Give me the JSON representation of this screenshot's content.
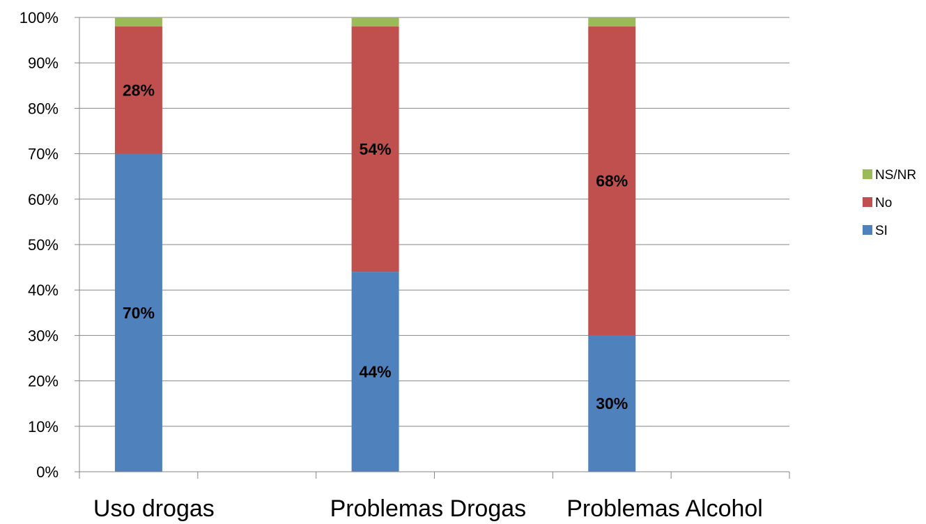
{
  "chart_data": {
    "type": "bar",
    "stacked": true,
    "categories": [
      "Uso drogas",
      "Problemas Drogas",
      "Problemas Alcohol"
    ],
    "series": [
      {
        "name": "SI",
        "values": [
          70,
          44,
          30
        ],
        "labels": [
          "70%",
          "44%",
          "30%"
        ],
        "color": "#4F81BD"
      },
      {
        "name": "No",
        "values": [
          28,
          54,
          68
        ],
        "labels": [
          "28%",
          "54%",
          "68%"
        ],
        "color": "#C0504D"
      },
      {
        "name": "NS/NR",
        "values": [
          2,
          2,
          2
        ],
        "labels": [
          "",
          "",
          ""
        ],
        "color": "#9BBB59"
      }
    ],
    "yticks": [
      "0%",
      "10%",
      "20%",
      "30%",
      "40%",
      "50%",
      "60%",
      "70%",
      "80%",
      "90%",
      "100%"
    ],
    "ylim": [
      0,
      100
    ],
    "grid": true,
    "legend_position": "right",
    "title": "",
    "xlabel": "",
    "ylabel": ""
  }
}
